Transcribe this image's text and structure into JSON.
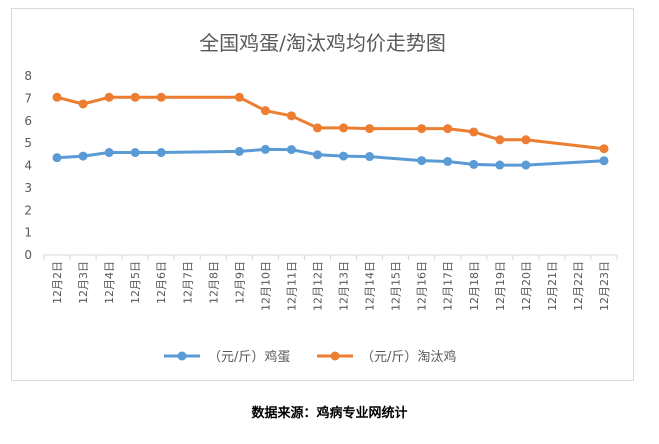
{
  "chart_data": {
    "type": "line",
    "title": "全国鸡蛋/淘汰鸡均价走势图",
    "xlabel": "",
    "ylabel": "",
    "ylim": [
      0,
      8
    ],
    "yticks": [
      0,
      1,
      2,
      3,
      4,
      5,
      6,
      7,
      8
    ],
    "grid": false,
    "legend_position": "bottom",
    "categories": [
      "12月2日",
      "12月3日",
      "12月4日",
      "12月5日",
      "12月6日",
      "12月7日",
      "12月8日",
      "12月9日",
      "12月10日",
      "12月11日",
      "12月12日",
      "12月13日",
      "12月14日",
      "12月15日",
      "12月16日",
      "12月17日",
      "12月18日",
      "12月19日",
      "12月20日",
      "12月21日",
      "12月22日",
      "12月23日"
    ],
    "series": [
      {
        "name": "（元/斤）鸡蛋",
        "color": "#5b9bd5",
        "values": [
          4.35,
          4.42,
          4.58,
          4.58,
          4.58,
          null,
          null,
          4.63,
          4.72,
          4.71,
          4.48,
          4.42,
          4.4,
          null,
          4.22,
          4.18,
          4.05,
          4.02,
          4.02,
          null,
          null,
          4.21
        ]
      },
      {
        "name": "（元/斤）淘汰鸡",
        "color": "#ed7d31",
        "values": [
          7.05,
          6.75,
          7.05,
          7.05,
          7.05,
          null,
          null,
          7.05,
          6.45,
          6.22,
          5.68,
          5.68,
          5.65,
          null,
          5.65,
          5.65,
          5.5,
          5.15,
          5.15,
          null,
          null,
          4.75
        ]
      }
    ]
  },
  "source_note": "数据来源：鸡病专业网统计"
}
